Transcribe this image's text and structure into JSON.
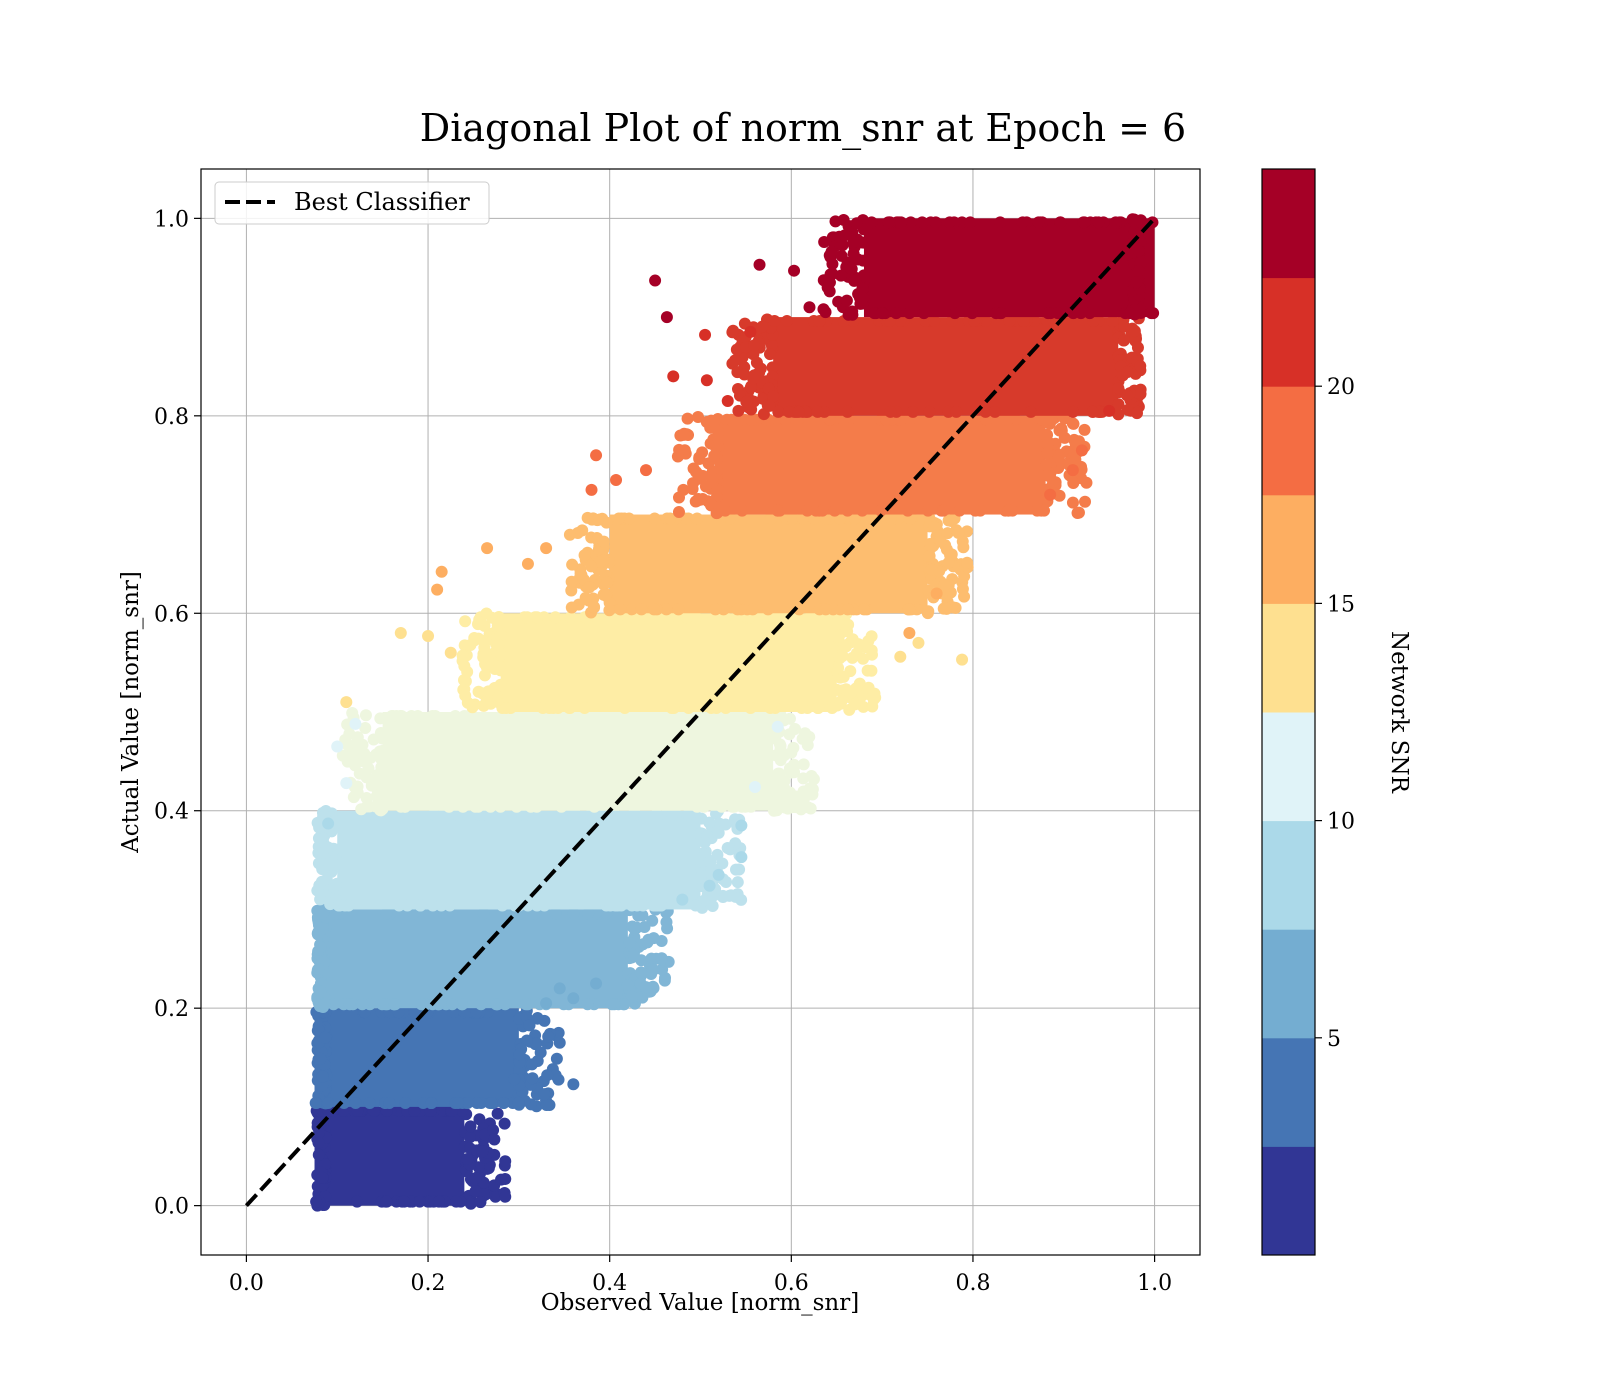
{
  "chart_data": {
    "type": "scatter",
    "title": "Diagonal Plot of norm_snr at Epoch = 6",
    "xlabel": "Observed Value [norm_snr]",
    "ylabel": "Actual Value [norm_snr]",
    "xlim": [
      -0.05,
      1.05
    ],
    "ylim": [
      -0.05,
      1.05
    ],
    "x_ticks": [
      0.0,
      0.2,
      0.4,
      0.6,
      0.8,
      1.0
    ],
    "y_ticks": [
      0.0,
      0.2,
      0.4,
      0.6,
      0.8,
      1.0
    ],
    "x_tick_labels": [
      "0.0",
      "0.2",
      "0.4",
      "0.6",
      "0.8",
      "1.0"
    ],
    "y_tick_labels": [
      "0.0",
      "0.2",
      "0.4",
      "0.6",
      "0.8",
      "1.0"
    ],
    "grid": true,
    "legend": {
      "placement": "upper-left",
      "entries": [
        "Best Classifier"
      ]
    },
    "reference_line": {
      "name": "Best Classifier",
      "style": "dashed",
      "color": "#000000",
      "x": [
        0.0,
        1.0
      ],
      "y": [
        0.0,
        1.0
      ]
    },
    "colorbar": {
      "label": "Network SNR",
      "range": [
        0,
        25
      ],
      "tick_values": [
        5,
        10,
        15,
        20
      ],
      "tick_labels": [
        "5",
        "10",
        "15",
        "20"
      ],
      "colors": [
        "#313695",
        "#4575b4",
        "#74add1",
        "#abd9e9",
        "#e0f3f8",
        "#fee090",
        "#fdae61",
        "#f46d43",
        "#d73027",
        "#a50026"
      ]
    },
    "bands": [
      {
        "y_range": [
          0.0,
          0.1
        ],
        "x_core": [
          0.075,
          0.24
        ],
        "color": "#313695"
      },
      {
        "y_range": [
          0.1,
          0.2
        ],
        "x_core": [
          0.075,
          0.3
        ],
        "color": "#4575b4"
      },
      {
        "y_range": [
          0.2,
          0.3
        ],
        "x_core": [
          0.08,
          0.42
        ],
        "color": "#81b6d6"
      },
      {
        "y_range": [
          0.3,
          0.4
        ],
        "x_core": [
          0.1,
          0.5
        ],
        "color": "#bde1ec"
      },
      {
        "y_range": [
          0.4,
          0.5
        ],
        "x_core": [
          0.15,
          0.58
        ],
        "color": "#eef6df"
      },
      {
        "y_range": [
          0.5,
          0.6
        ],
        "x_core": [
          0.28,
          0.65
        ],
        "color": "#feeda5"
      },
      {
        "y_range": [
          0.6,
          0.7
        ],
        "x_core": [
          0.4,
          0.75
        ],
        "color": "#fdbd6f"
      },
      {
        "y_range": [
          0.7,
          0.8
        ],
        "x_core": [
          0.52,
          0.88
        ],
        "color": "#f47c4a"
      },
      {
        "y_range": [
          0.8,
          0.9
        ],
        "x_core": [
          0.58,
          0.96
        ],
        "color": "#d73a2b"
      },
      {
        "y_range": [
          0.9,
          1.0
        ],
        "x_core": [
          0.68,
          1.0
        ],
        "color": "#a50026"
      }
    ],
    "outliers": [
      {
        "x": 0.45,
        "y": 0.937,
        "c": 24
      },
      {
        "x": 0.463,
        "y": 0.9,
        "c": 24
      },
      {
        "x": 0.565,
        "y": 0.953,
        "c": 24
      },
      {
        "x": 0.603,
        "y": 0.947,
        "c": 24
      },
      {
        "x": 0.672,
        "y": 0.995,
        "c": 24
      },
      {
        "x": 0.64,
        "y": 0.93,
        "c": 24
      },
      {
        "x": 0.62,
        "y": 0.91,
        "c": 24
      },
      {
        "x": 0.505,
        "y": 0.882,
        "c": 22
      },
      {
        "x": 0.555,
        "y": 0.885,
        "c": 22
      },
      {
        "x": 0.47,
        "y": 0.84,
        "c": 22
      },
      {
        "x": 0.507,
        "y": 0.836,
        "c": 22
      },
      {
        "x": 0.53,
        "y": 0.815,
        "c": 22
      },
      {
        "x": 0.98,
        "y": 0.935,
        "c": 24
      },
      {
        "x": 0.95,
        "y": 0.805,
        "c": 22
      },
      {
        "x": 0.385,
        "y": 0.76,
        "c": 19
      },
      {
        "x": 0.407,
        "y": 0.735,
        "c": 19
      },
      {
        "x": 0.38,
        "y": 0.725,
        "c": 19
      },
      {
        "x": 0.44,
        "y": 0.745,
        "c": 19
      },
      {
        "x": 0.92,
        "y": 0.765,
        "c": 19
      },
      {
        "x": 0.885,
        "y": 0.72,
        "c": 19
      },
      {
        "x": 0.91,
        "y": 0.745,
        "c": 19
      },
      {
        "x": 0.215,
        "y": 0.642,
        "c": 17
      },
      {
        "x": 0.21,
        "y": 0.624,
        "c": 17
      },
      {
        "x": 0.265,
        "y": 0.666,
        "c": 17
      },
      {
        "x": 0.33,
        "y": 0.666,
        "c": 17
      },
      {
        "x": 0.31,
        "y": 0.65,
        "c": 17
      },
      {
        "x": 0.73,
        "y": 0.58,
        "c": 17
      },
      {
        "x": 0.76,
        "y": 0.62,
        "c": 17
      },
      {
        "x": 0.17,
        "y": 0.58,
        "c": 14
      },
      {
        "x": 0.2,
        "y": 0.577,
        "c": 14
      },
      {
        "x": 0.225,
        "y": 0.56,
        "c": 14
      },
      {
        "x": 0.11,
        "y": 0.51,
        "c": 14
      },
      {
        "x": 0.788,
        "y": 0.553,
        "c": 14
      },
      {
        "x": 0.74,
        "y": 0.57,
        "c": 14
      },
      {
        "x": 0.72,
        "y": 0.556,
        "c": 14
      },
      {
        "x": 0.1,
        "y": 0.465,
        "c": 11
      },
      {
        "x": 0.12,
        "y": 0.488,
        "c": 11
      },
      {
        "x": 0.11,
        "y": 0.428,
        "c": 11
      },
      {
        "x": 0.585,
        "y": 0.485,
        "c": 11
      },
      {
        "x": 0.56,
        "y": 0.424,
        "c": 11
      },
      {
        "x": 0.09,
        "y": 0.387,
        "c": 9
      },
      {
        "x": 0.545,
        "y": 0.385,
        "c": 9
      },
      {
        "x": 0.545,
        "y": 0.353,
        "c": 9
      },
      {
        "x": 0.52,
        "y": 0.335,
        "c": 9
      },
      {
        "x": 0.51,
        "y": 0.324,
        "c": 9
      },
      {
        "x": 0.48,
        "y": 0.31,
        "c": 9
      },
      {
        "x": 0.385,
        "y": 0.225,
        "c": 7
      },
      {
        "x": 0.345,
        "y": 0.22,
        "c": 7
      },
      {
        "x": 0.36,
        "y": 0.21,
        "c": 7
      },
      {
        "x": 0.33,
        "y": 0.205,
        "c": 7
      },
      {
        "x": 0.345,
        "y": 0.165,
        "c": 4
      },
      {
        "x": 0.36,
        "y": 0.123,
        "c": 4
      },
      {
        "x": 0.328,
        "y": 0.113,
        "c": 4
      },
      {
        "x": 0.295,
        "y": 0.128,
        "c": 4
      },
      {
        "x": 0.285,
        "y": 0.045,
        "c": 1
      },
      {
        "x": 0.285,
        "y": 0.027,
        "c": 1
      },
      {
        "x": 0.285,
        "y": 0.009,
        "c": 1
      },
      {
        "x": 0.273,
        "y": 0.067,
        "c": 1
      },
      {
        "x": 0.26,
        "y": 0.055,
        "c": 1
      }
    ]
  }
}
